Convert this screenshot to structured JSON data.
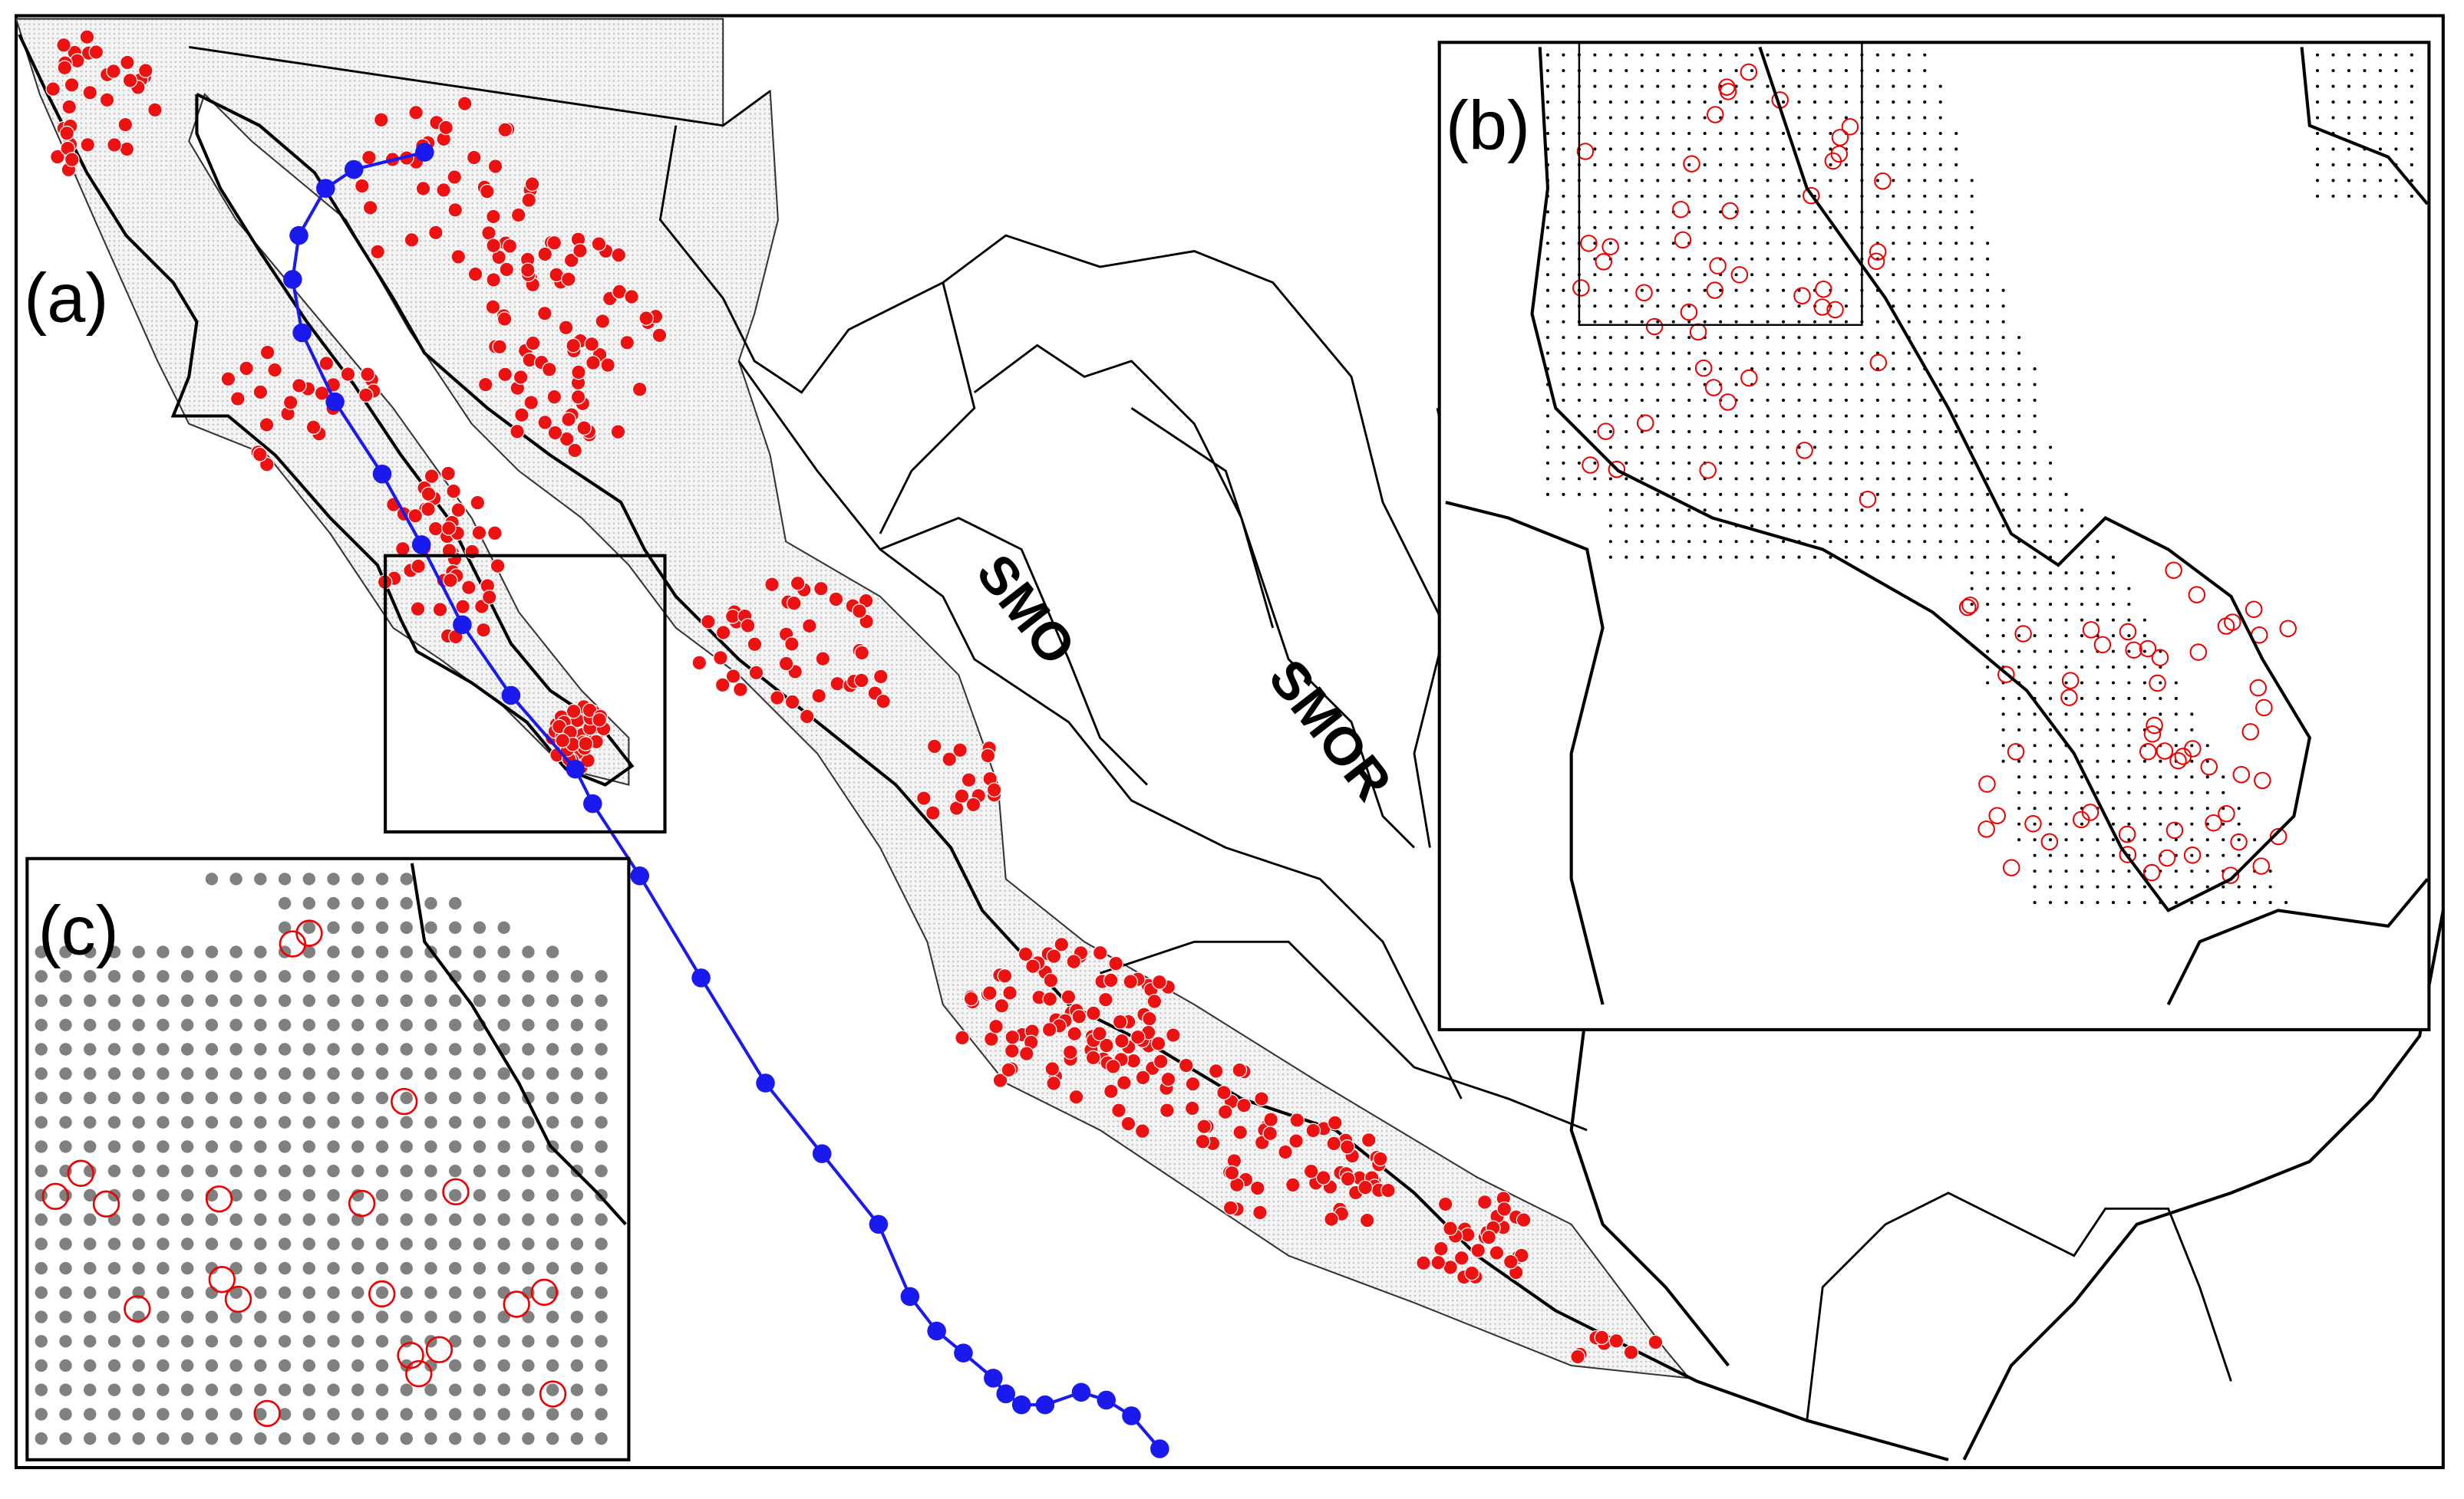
{
  "panels": {
    "a": "(a)",
    "b": "(b)",
    "c": "(c)"
  },
  "regions": {
    "smo": "SMO",
    "smor": "SMOR"
  }
}
